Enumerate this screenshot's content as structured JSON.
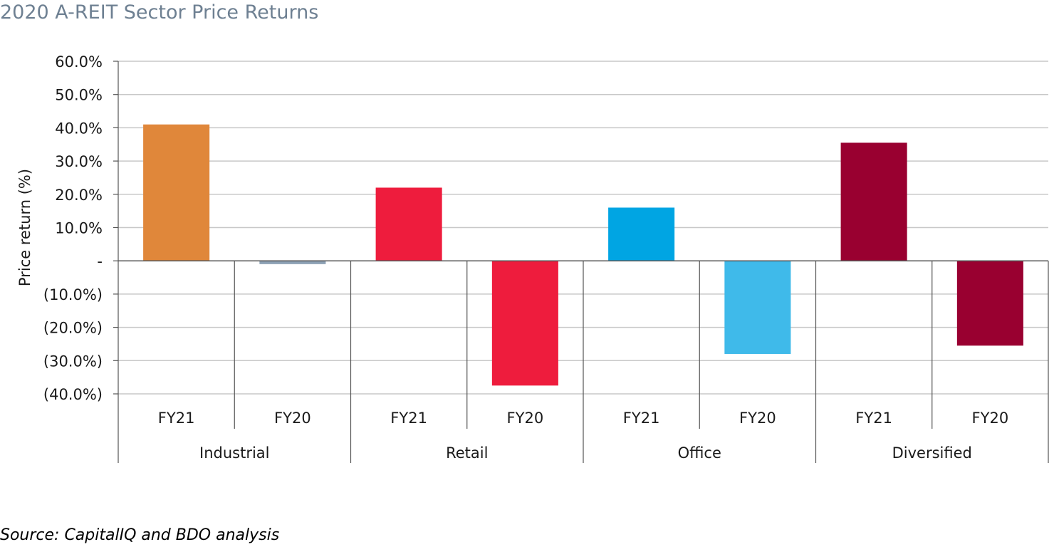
{
  "title": "2020 A-REIT Sector Price Returns",
  "source": "Source: CapitalIQ and BDO analysis",
  "chart_data": {
    "type": "bar",
    "title": "2020 A-REIT Sector Price Returns",
    "ylabel": "Price return (%)",
    "xlabel": "",
    "ylim": [
      -40,
      60
    ],
    "yticks": [
      60,
      50,
      40,
      30,
      20,
      10,
      0,
      -10,
      -20,
      -30,
      -40
    ],
    "ytick_labels": [
      "60.0%",
      "50.0%",
      "40.0%",
      "30.0%",
      "20.0%",
      "10.0%",
      "-",
      "(10.0%)",
      "(20.0%)",
      "(30.0%)",
      "(40.0%)"
    ],
    "grid": true,
    "legend": "none",
    "groups": [
      {
        "name": "Industrial",
        "bars": [
          {
            "label": "FY21",
            "value": 41.0,
            "color": "#e0873a"
          },
          {
            "label": "FY20",
            "value": -1.0,
            "color": "#8da1b5"
          }
        ]
      },
      {
        "name": "Retail",
        "bars": [
          {
            "label": "FY21",
            "value": 22.0,
            "color": "#ee1c3d"
          },
          {
            "label": "FY20",
            "value": -37.5,
            "color": "#ee1c3d"
          }
        ]
      },
      {
        "name": "Office",
        "bars": [
          {
            "label": "FY21",
            "value": 16.0,
            "color": "#00a5e3"
          },
          {
            "label": "FY20",
            "value": -28.0,
            "color": "#3fbaea"
          }
        ]
      },
      {
        "name": "Diversified",
        "bars": [
          {
            "label": "FY21",
            "value": 35.5,
            "color": "#990030"
          },
          {
            "label": "FY20",
            "value": -25.5,
            "color": "#990030"
          }
        ]
      }
    ]
  }
}
